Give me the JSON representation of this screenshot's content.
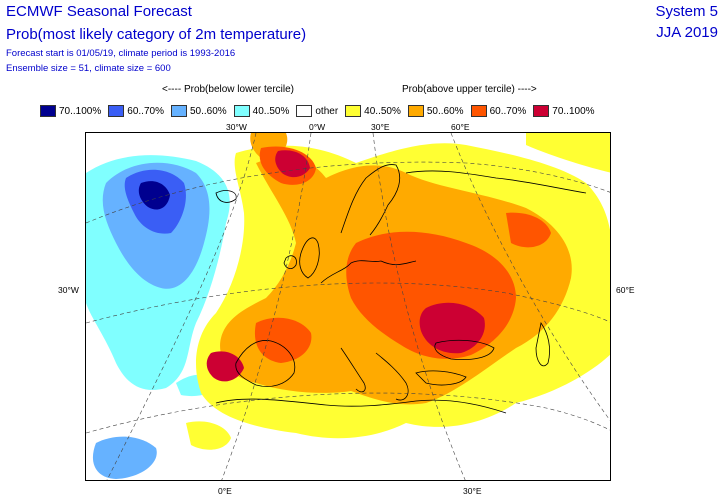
{
  "header": {
    "title_line1": "ECMWF Seasonal Forecast",
    "title_line2": "Prob(most likely category of 2m temperature)",
    "info_line1": "Forecast start is 01/05/19, climate period is 1993-2016",
    "info_line2": "Ensemble size = 51, climate size = 600",
    "system": "System 5",
    "season": "JJA 2019"
  },
  "legend": {
    "below_header": "<---- Prob(below lower tercile)",
    "above_header": "Prob(above upper tercile) ---->",
    "items": [
      {
        "label": "70..100%",
        "color": "#00008f"
      },
      {
        "label": "60..70%",
        "color": "#3a5ef5"
      },
      {
        "label": "50..60%",
        "color": "#66b2ff"
      },
      {
        "label": "40..50%",
        "color": "#80ffff"
      },
      {
        "label": "other",
        "color": "#ffffff"
      },
      {
        "label": "40..50%",
        "color": "#ffff33"
      },
      {
        "label": "50..60%",
        "color": "#ffaa00"
      },
      {
        "label": "60..70%",
        "color": "#ff5500"
      },
      {
        "label": "70..100%",
        "color": "#cc0033"
      }
    ]
  },
  "map": {
    "region": "Europe",
    "top_labels": [
      "30°W",
      "0°W",
      "30°E",
      "60°E"
    ],
    "left_label": "30°W",
    "right_label": "60°E",
    "bottom_labels": [
      "0°E",
      "30°E"
    ]
  }
}
